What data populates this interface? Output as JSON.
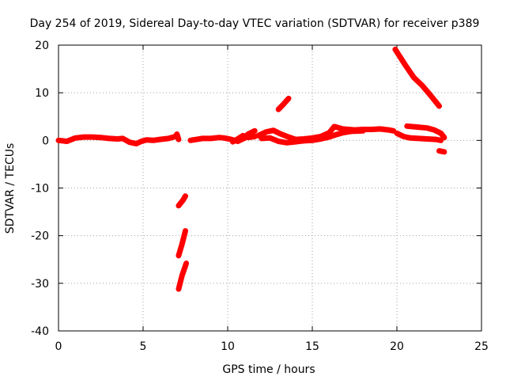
{
  "chart_data": {
    "type": "scatter",
    "title": "Day 254 of 2019, Sidereal Day-to-day VTEC variation (SDTVAR) for receiver p389",
    "xlabel": "GPS time / hours",
    "ylabel": "SDTVAR / TECUs",
    "xlim": [
      0,
      25
    ],
    "ylim": [
      -40,
      20
    ],
    "x_ticks": [
      0,
      5,
      10,
      15,
      20,
      25
    ],
    "y_ticks": [
      -40,
      -30,
      -20,
      -10,
      0,
      10,
      20
    ],
    "grid": true,
    "color": "#ff0000",
    "series": [
      {
        "segments": [
          [
            [
              0.0,
              0.0
            ],
            [
              0.5,
              -0.2
            ],
            [
              1.0,
              0.5
            ],
            [
              1.5,
              0.7
            ],
            [
              2.0,
              0.7
            ],
            [
              2.5,
              0.6
            ],
            [
              3.0,
              0.4
            ],
            [
              3.5,
              0.3
            ],
            [
              3.8,
              0.4
            ],
            [
              4.2,
              -0.4
            ],
            [
              4.6,
              -0.7
            ],
            [
              4.9,
              -0.2
            ],
            [
              5.2,
              0.1
            ],
            [
              5.6,
              0.0
            ],
            [
              6.0,
              0.2
            ],
            [
              6.5,
              0.4
            ],
            [
              6.9,
              0.8
            ],
            [
              7.0,
              1.3
            ],
            [
              7.1,
              0.2
            ]
          ],
          [
            [
              7.8,
              0.0
            ],
            [
              8.5,
              0.4
            ],
            [
              9.0,
              0.4
            ],
            [
              9.5,
              0.6
            ],
            [
              9.8,
              0.5
            ],
            [
              10.2,
              0.2
            ],
            [
              10.6,
              -0.2
            ],
            [
              11.0,
              0.5
            ],
            [
              11.2,
              1.3
            ],
            [
              11.6,
              2.0
            ]
          ],
          [
            [
              10.3,
              -0.3
            ],
            [
              10.6,
              0.3
            ],
            [
              10.9,
              1.0
            ],
            [
              11.2,
              0.6
            ],
            [
              11.6,
              0.8
            ]
          ],
          [
            [
              11.8,
              1.0
            ],
            [
              12.3,
              1.8
            ],
            [
              12.7,
              2.1
            ],
            [
              13.1,
              1.4
            ],
            [
              13.6,
              0.7
            ],
            [
              14.0,
              0.2
            ],
            [
              14.5,
              0.3
            ],
            [
              15.0,
              0.5
            ],
            [
              15.5,
              0.8
            ],
            [
              16.0,
              1.6
            ],
            [
              16.3,
              2.9
            ],
            [
              16.8,
              2.4
            ],
            [
              17.5,
              2.2
            ],
            [
              18.0,
              2.3
            ],
            [
              18.5,
              2.3
            ],
            [
              19.0,
              2.4
            ],
            [
              19.5,
              2.2
            ],
            [
              19.8,
              2.0
            ]
          ],
          [
            [
              12.0,
              0.4
            ],
            [
              12.5,
              0.5
            ],
            [
              13.0,
              -0.2
            ],
            [
              13.5,
              -0.5
            ],
            [
              14.0,
              -0.3
            ],
            [
              14.5,
              -0.1
            ],
            [
              15.0,
              0.0
            ],
            [
              15.5,
              0.3
            ],
            [
              16.0,
              0.7
            ],
            [
              16.4,
              1.2
            ],
            [
              16.8,
              1.6
            ],
            [
              17.3,
              1.9
            ],
            [
              18.0,
              2.0
            ]
          ],
          [
            [
              13.0,
              6.5
            ],
            [
              13.3,
              7.6
            ],
            [
              13.6,
              8.8
            ]
          ],
          [
            [
              19.9,
              19.1
            ],
            [
              20.5,
              15.8
            ],
            [
              21.0,
              13.2
            ],
            [
              21.5,
              11.5
            ],
            [
              22.0,
              9.4
            ],
            [
              22.5,
              7.2
            ]
          ],
          [
            [
              20.0,
              1.5
            ],
            [
              20.4,
              0.8
            ],
            [
              20.8,
              0.5
            ],
            [
              21.3,
              0.4
            ],
            [
              21.8,
              0.3
            ],
            [
              22.3,
              0.2
            ],
            [
              22.6,
              0.0
            ]
          ],
          [
            [
              20.6,
              3.0
            ],
            [
              21.2,
              2.8
            ],
            [
              21.8,
              2.6
            ],
            [
              22.2,
              2.2
            ],
            [
              22.6,
              1.5
            ],
            [
              22.8,
              0.6
            ]
          ],
          [
            [
              22.5,
              -2.2
            ],
            [
              22.8,
              -2.4
            ]
          ],
          [
            [
              7.1,
              -13.7
            ],
            [
              7.35,
              -12.6
            ],
            [
              7.5,
              -11.7
            ]
          ],
          [
            [
              7.1,
              -24.2
            ],
            [
              7.3,
              -21.8
            ],
            [
              7.5,
              -19.0
            ]
          ],
          [
            [
              7.1,
              -31.2
            ],
            [
              7.3,
              -28.4
            ],
            [
              7.55,
              -25.8
            ]
          ]
        ]
      }
    ]
  }
}
